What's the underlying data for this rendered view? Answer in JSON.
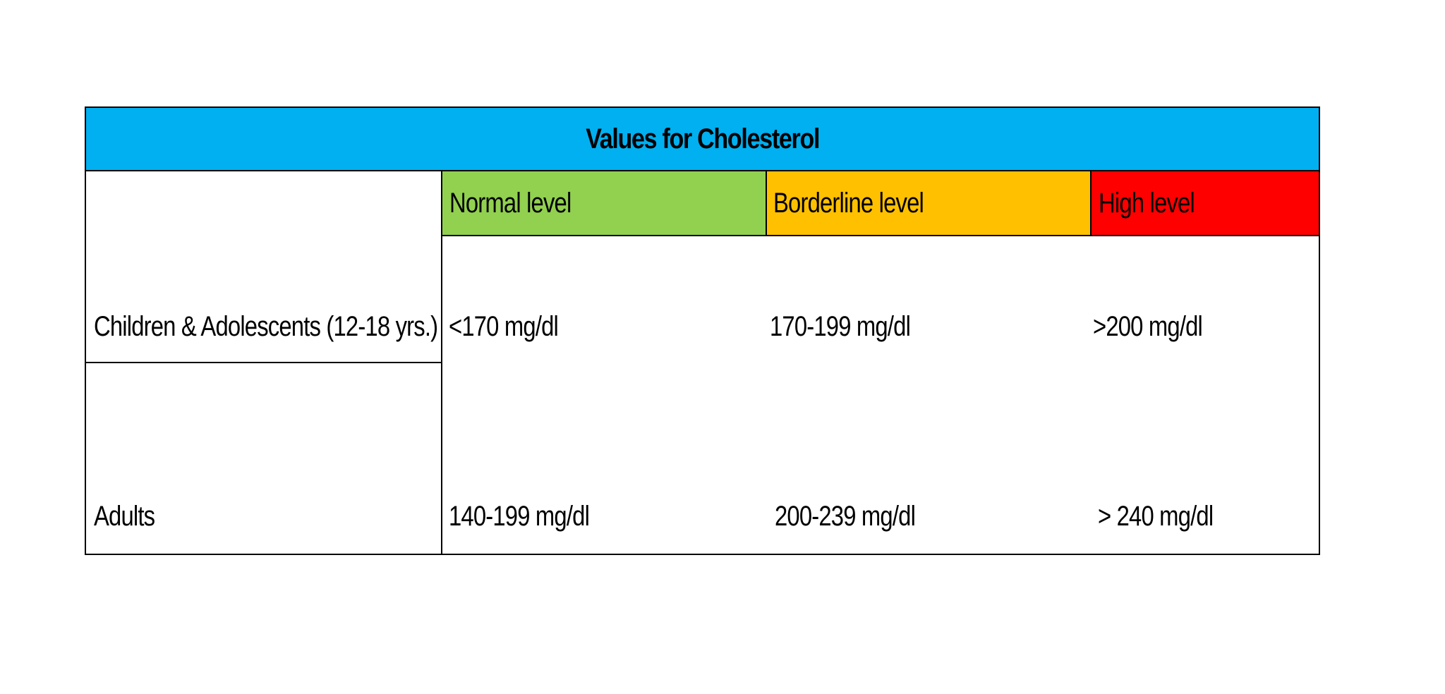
{
  "table": {
    "title": "Values for Cholesterol",
    "colors": {
      "title_bg": "#00B0F0",
      "normal_bg": "#92D050",
      "borderline_bg": "#FFC000",
      "high_bg": "#FF0000"
    },
    "headers": [
      "Normal level",
      "Borderline level",
      "High level"
    ],
    "rows": [
      {
        "label": "Children & Adolescents (12-18 yrs.)",
        "values": [
          "<170 mg/dl",
          "170-199 mg/dl",
          ">200 mg/dl"
        ]
      },
      {
        "label": "Adults",
        "values": [
          "140-199 mg/dl",
          "200-239 mg/dl",
          "> 240 mg/dl"
        ]
      }
    ]
  }
}
